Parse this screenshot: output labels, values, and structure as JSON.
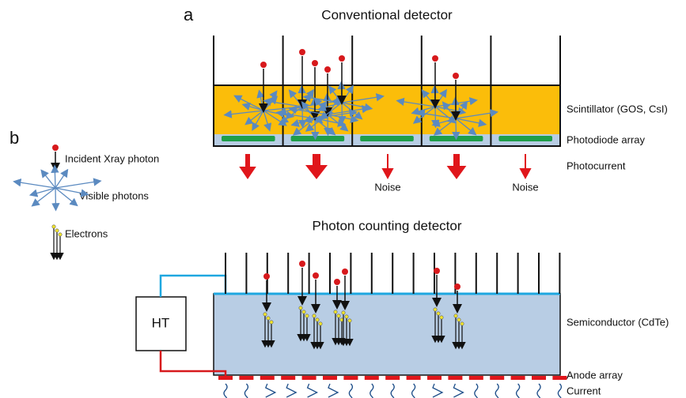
{
  "panel_a": {
    "label": "a",
    "conventional": {
      "title": "Conventional detector",
      "scintillator": "Scintillator (GOS, CsI)",
      "photodiode": "Photodiode array",
      "photocurrent": "Photocurrent",
      "noise_labels": [
        "Noise",
        "Noise"
      ]
    },
    "photon_counting": {
      "title": "Photon counting detector",
      "ht": "HT",
      "semiconductor": "Semiconductor (CdTe)",
      "anode": "Anode array",
      "current": "Current"
    }
  },
  "panel_b": {
    "label": "b",
    "legend": [
      "Incident Xray photon",
      "Visible photons",
      "Electrons"
    ]
  }
}
